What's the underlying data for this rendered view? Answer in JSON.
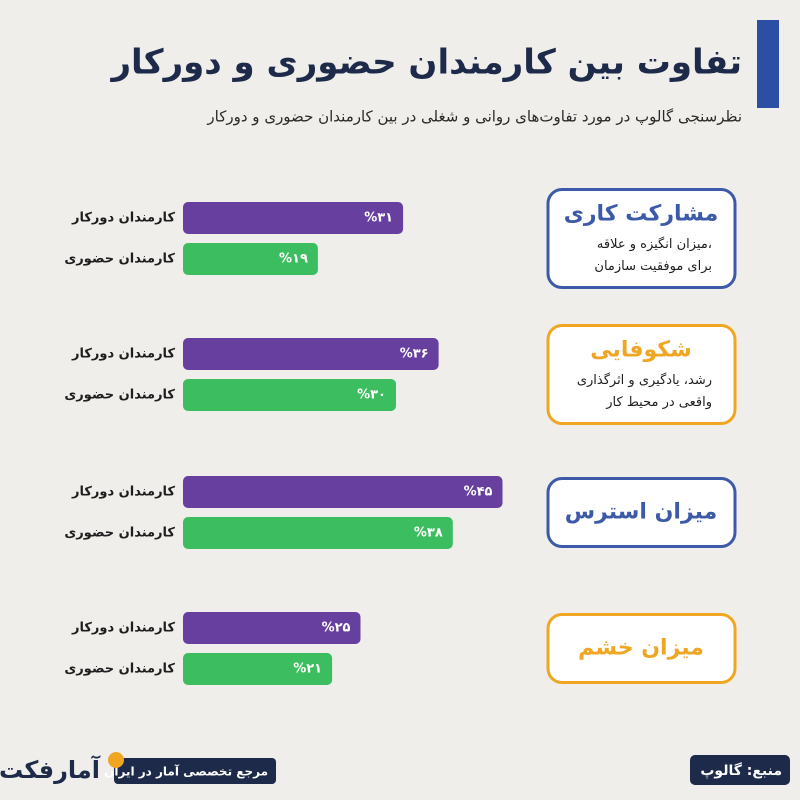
{
  "title": "تفاوت بین کارمندان حضوری و دورکار",
  "subtitle": "نظرسنجی گالوپ در مورد تفاوت‌های روانی و شغلی در بین کارمندان حضوری و دورکار",
  "chart_data": {
    "type": "bar",
    "orientation": "horizontal",
    "categories": [
      "مشارکت کاری",
      "شکوفایی",
      "میزان استرس",
      "میزان خشم"
    ],
    "descriptions": [
      [
        "میزان انگیزه و علاقه،",
        "برای موفقیت سازمان"
      ],
      [
        "رشد، یادگیری و اثرگذاری",
        "واقعی در محیط کار"
      ],
      [],
      []
    ],
    "category_colors": [
      "#3d5aa8",
      "#f0a623",
      "#3d5aa8",
      "#f0a623"
    ],
    "series": [
      {
        "name": "کارمندان دورکار",
        "color": "#673f9e",
        "values": [
          31,
          36,
          45,
          25
        ],
        "value_labels": [
          "%۳۱",
          "%۳۶",
          "%۴۵",
          "%۲۵"
        ]
      },
      {
        "name": "کارمندان حضوری",
        "color": "#3cbd5f",
        "values": [
          19,
          30,
          38,
          21
        ],
        "value_labels": [
          "%۱۹",
          "%۳۰",
          "%۳۸",
          "%۲۱"
        ]
      }
    ]
  },
  "footer": {
    "source": "منبع: گالوپ",
    "logo": "آمارفکت",
    "tagline": "مرجع تخصصی آمار در ایران"
  }
}
